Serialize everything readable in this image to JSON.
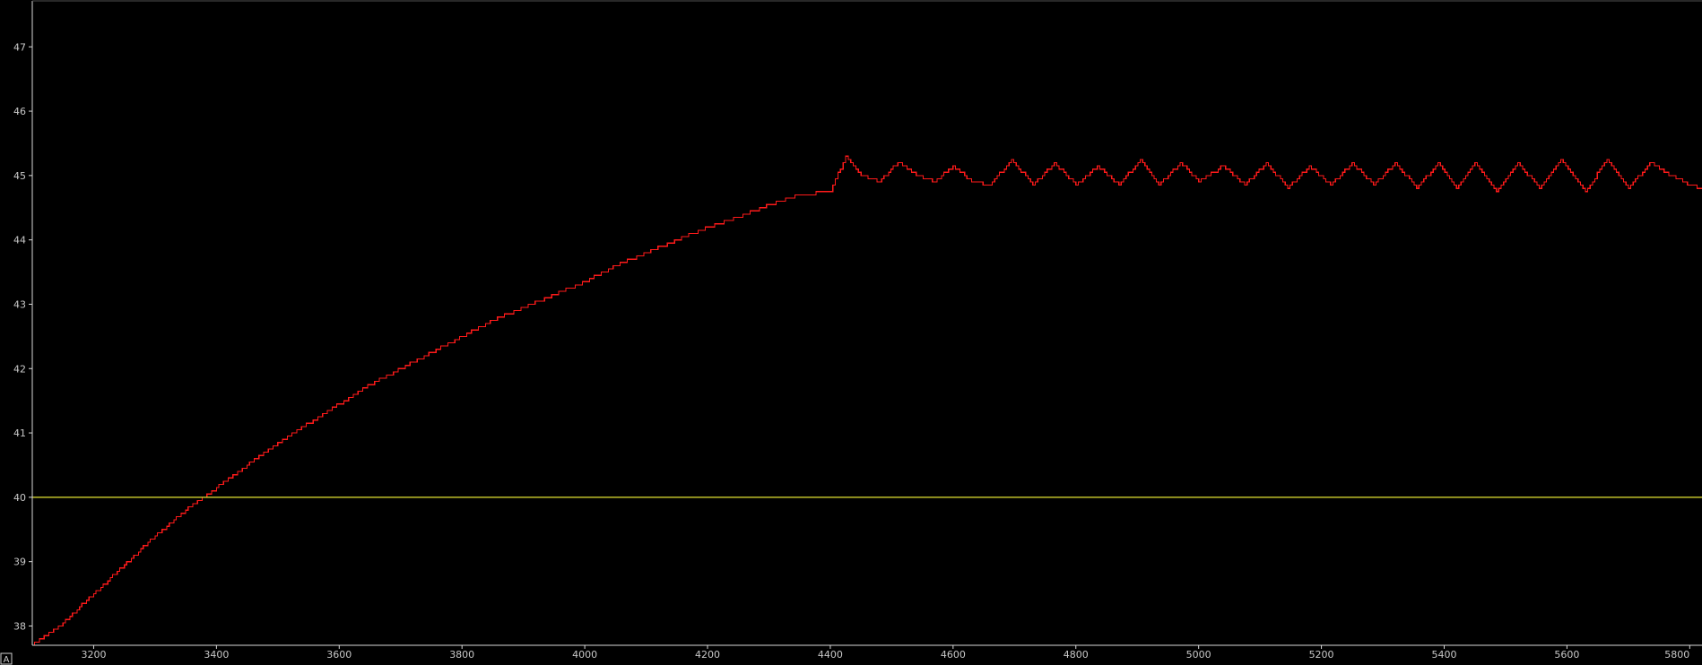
{
  "corner_label": "A",
  "chart_data": {
    "type": "line",
    "grid": false,
    "legend": "none",
    "xlim": [
      3100,
      5820
    ],
    "ylim": [
      37.7,
      47.7
    ],
    "x_ticks": [
      3200,
      3400,
      3600,
      3800,
      4000,
      4200,
      4400,
      4600,
      4800,
      5000,
      5200,
      5400,
      5600,
      5800
    ],
    "y_ticks": [
      38,
      39,
      40,
      41,
      42,
      43,
      44,
      45,
      46,
      47
    ],
    "background_color": "#000000",
    "axis_color": "#d8d8d8",
    "series": [
      {
        "color": "#ff1a1a",
        "style": "step",
        "x": [
          3100,
          3150,
          3200,
          3250,
          3300,
          3350,
          3400,
          3450,
          3500,
          3550,
          3600,
          3650,
          3700,
          3750,
          3800,
          3850,
          3900,
          3950,
          4000,
          4050,
          4100,
          4150,
          4200,
          4250,
          4300,
          4350,
          4400,
          4425,
          4450,
          4480,
          4510,
          4540,
          4570,
          4600,
          4630,
          4660,
          4695,
          4730,
          4765,
          4800,
          4835,
          4870,
          4905,
          4935,
          4970,
          5000,
          5040,
          5075,
          5110,
          5145,
          5180,
          5215,
          5250,
          5285,
          5320,
          5355,
          5390,
          5420,
          5450,
          5485,
          5520,
          5555,
          5590,
          5630,
          5665,
          5700,
          5735,
          5770,
          5800,
          5820
        ],
        "y": [
          37.7,
          38.05,
          38.5,
          38.95,
          39.4,
          39.8,
          40.15,
          40.5,
          40.85,
          41.15,
          41.45,
          41.75,
          42.0,
          42.25,
          42.5,
          42.75,
          42.95,
          43.15,
          43.35,
          43.6,
          43.8,
          44.0,
          44.2,
          44.35,
          44.55,
          44.7,
          44.75,
          45.3,
          45.0,
          44.9,
          45.2,
          45.0,
          44.9,
          45.15,
          44.9,
          44.85,
          45.25,
          44.85,
          45.2,
          44.85,
          45.15,
          44.85,
          45.25,
          44.85,
          45.2,
          44.9,
          45.15,
          44.85,
          45.2,
          44.8,
          45.15,
          44.85,
          45.2,
          44.85,
          45.2,
          44.8,
          45.2,
          44.8,
          45.2,
          44.75,
          45.2,
          44.8,
          45.25,
          44.75,
          45.25,
          44.8,
          45.2,
          45.0,
          44.85,
          44.8
        ]
      },
      {
        "color": "#e6e632",
        "style": "line",
        "x": [
          3100,
          5820
        ],
        "y": [
          40,
          40
        ]
      }
    ]
  }
}
